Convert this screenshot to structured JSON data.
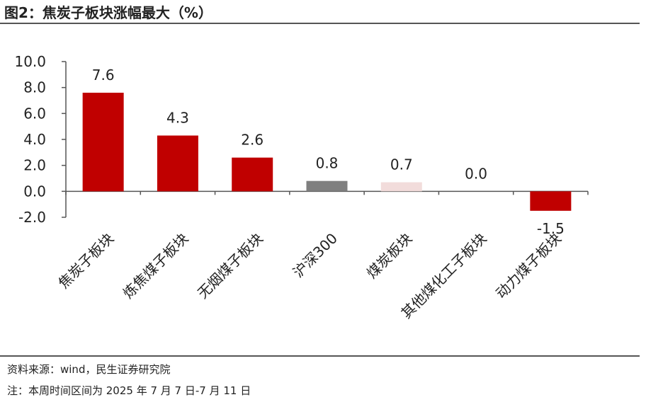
{
  "title": "图2：焦炭子板块涨幅最大（%）",
  "source_note": "资料来源：wind，民生证券研究院",
  "period_note": "注：本周时间区间为 2025 年 7 月 7 日-7 月 11 日",
  "chart_data": {
    "type": "bar",
    "title": "图2：焦炭子板块涨幅最大（%）",
    "categories": [
      "焦炭子板块",
      "炼焦煤子板块",
      "无烟煤子板块",
      "沪深300",
      "煤炭板块",
      "其他煤化工子板块",
      "动力煤子板块"
    ],
    "values": [
      7.6,
      4.3,
      2.6,
      0.8,
      0.7,
      0.0,
      -1.5
    ],
    "data_labels": [
      "7.6",
      "4.3",
      "2.6",
      "0.8",
      "0.7",
      "0.0",
      "-1.5"
    ],
    "bar_colors": [
      "#c00000",
      "#c00000",
      "#c00000",
      "#7f7f7f",
      "#f2dcdb",
      "#c00000",
      "#c00000"
    ],
    "ylim": [
      -2.0,
      10.0
    ],
    "yticks": [
      "10.0",
      "8.0",
      "6.0",
      "4.0",
      "2.0",
      "0.0",
      "-2.0"
    ],
    "ytick_values": [
      10,
      8,
      6,
      4,
      2,
      0,
      -2
    ],
    "xlabel": "",
    "ylabel": "",
    "grid": false,
    "legend": "none"
  }
}
